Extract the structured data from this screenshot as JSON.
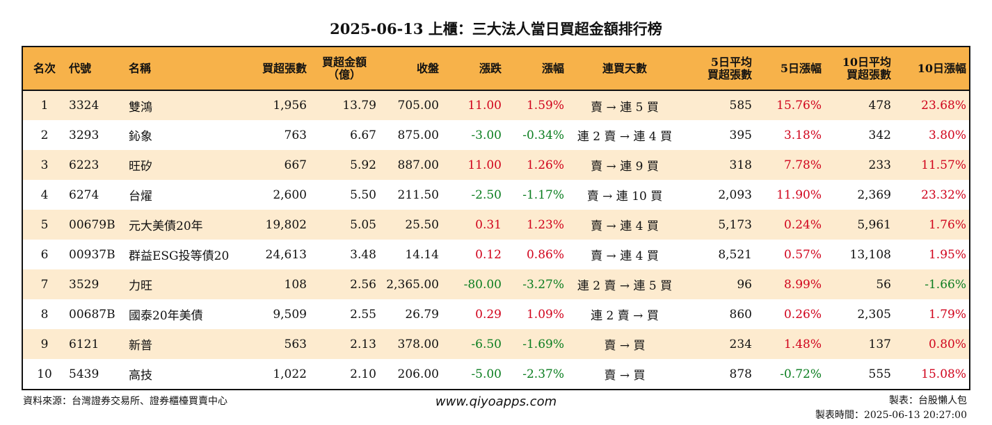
{
  "title": "2025-06-13 上櫃：三大法人當日買超金額排行榜",
  "headers": {
    "rank": "名次",
    "code": "代號",
    "name": "名稱",
    "net_buy_lots": "買超張數",
    "net_buy_amount": [
      "買超金額",
      "（億）"
    ],
    "close": "收盤",
    "change": "漲跌",
    "change_pct": "漲幅",
    "streak": "連買天數",
    "avg5_lots": [
      "5日平均",
      "買超張數"
    ],
    "pct5": "5日漲幅",
    "avg10_lots": [
      "10日平均",
      "買超張數"
    ],
    "pct10": "10日漲幅"
  },
  "rows": [
    {
      "rank": "1",
      "code": "3324",
      "name": "雙鴻",
      "lots": "1,956",
      "amount": "13.79",
      "close": "705.00",
      "change": "11.00",
      "change_pct": "1.59%",
      "streak": "賣 → 連 5 買",
      "avg5": "585",
      "pct5": "15.76%",
      "avg10": "478",
      "pct10": "23.68%"
    },
    {
      "rank": "2",
      "code": "3293",
      "name": "鈊象",
      "lots": "763",
      "amount": "6.67",
      "close": "875.00",
      "change": "-3.00",
      "change_pct": "-0.34%",
      "streak": "連 2 賣 → 連 4 買",
      "avg5": "395",
      "pct5": "3.18%",
      "avg10": "342",
      "pct10": "3.80%"
    },
    {
      "rank": "3",
      "code": "6223",
      "name": "旺矽",
      "lots": "667",
      "amount": "5.92",
      "close": "887.00",
      "change": "11.00",
      "change_pct": "1.26%",
      "streak": "賣 → 連 9 買",
      "avg5": "318",
      "pct5": "7.78%",
      "avg10": "233",
      "pct10": "11.57%"
    },
    {
      "rank": "4",
      "code": "6274",
      "name": "台燿",
      "lots": "2,600",
      "amount": "5.50",
      "close": "211.50",
      "change": "-2.50",
      "change_pct": "-1.17%",
      "streak": "賣 → 連 10 買",
      "avg5": "2,093",
      "pct5": "11.90%",
      "avg10": "2,369",
      "pct10": "23.32%"
    },
    {
      "rank": "5",
      "code": "00679B",
      "name": "元大美債20年",
      "lots": "19,802",
      "amount": "5.05",
      "close": "25.50",
      "change": "0.31",
      "change_pct": "1.23%",
      "streak": "賣 → 連 4 買",
      "avg5": "5,173",
      "pct5": "0.24%",
      "avg10": "5,961",
      "pct10": "1.76%"
    },
    {
      "rank": "6",
      "code": "00937B",
      "name": "群益ESG投等債20",
      "lots": "24,613",
      "amount": "3.48",
      "close": "14.14",
      "change": "0.12",
      "change_pct": "0.86%",
      "streak": "賣 → 連 4 買",
      "avg5": "8,521",
      "pct5": "0.57%",
      "avg10": "13,108",
      "pct10": "1.95%"
    },
    {
      "rank": "7",
      "code": "3529",
      "name": "力旺",
      "lots": "108",
      "amount": "2.56",
      "close": "2,365.00",
      "change": "-80.00",
      "change_pct": "-3.27%",
      "streak": "連 2 賣 → 連 5 買",
      "avg5": "96",
      "pct5": "8.99%",
      "avg10": "56",
      "pct10": "-1.66%"
    },
    {
      "rank": "8",
      "code": "00687B",
      "name": "國泰20年美債",
      "lots": "9,509",
      "amount": "2.55",
      "close": "26.79",
      "change": "0.29",
      "change_pct": "1.09%",
      "streak": "連 2 賣 → 買",
      "avg5": "860",
      "pct5": "0.26%",
      "avg10": "2,305",
      "pct10": "1.79%"
    },
    {
      "rank": "9",
      "code": "6121",
      "name": "新普",
      "lots": "563",
      "amount": "2.13",
      "close": "378.00",
      "change": "-6.50",
      "change_pct": "-1.69%",
      "streak": "賣 → 買",
      "avg5": "234",
      "pct5": "1.48%",
      "avg10": "137",
      "pct10": "0.80%"
    },
    {
      "rank": "10",
      "code": "5439",
      "name": "高技",
      "lots": "1,022",
      "amount": "2.10",
      "close": "206.00",
      "change": "-5.00",
      "change_pct": "-2.37%",
      "streak": "賣 → 買",
      "avg5": "878",
      "pct5": "-0.72%",
      "avg10": "555",
      "pct10": "15.08%"
    }
  ],
  "footer": {
    "source": "資料來源：台灣證券交易所、證券櫃檯買賣中心",
    "website": "www.qiyoapps.com",
    "author": "製表：台股懶人包",
    "generated": "製表時間：2025-06-13 20:27:00"
  },
  "colors": {
    "header_bg": "#f7b24a",
    "odd_row_bg": "#fdebcf",
    "positive": "#d0021b",
    "negative": "#0a7d1f"
  }
}
